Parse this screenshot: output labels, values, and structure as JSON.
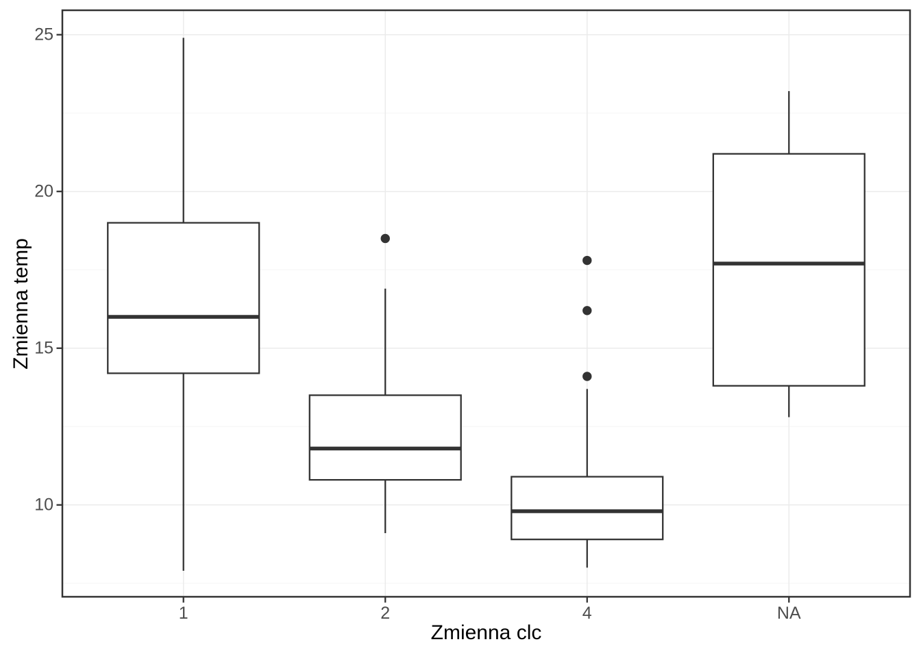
{
  "colors": {
    "box_line": "#333333",
    "outlier_fill": "#333333",
    "panel_border": "#333333",
    "grid_major": "#ebebeb",
    "grid_minor": "#f5f5f5",
    "tick_mark": "#333333",
    "tick_text": "#4d4d4d",
    "axis_title_text": "#000000",
    "background": "#ffffff"
  },
  "chart_data": {
    "type": "boxplot",
    "title": "",
    "xlabel": "Zmienna clc",
    "ylabel": "Zmienna temp",
    "categories": [
      "1",
      "2",
      "4",
      "NA"
    ],
    "y_ticks": [
      25,
      20,
      15,
      10
    ],
    "y_minor_gridlines": [
      22.5,
      17.5,
      12.5,
      7.5
    ],
    "ylim": [
      7.07,
      25.78
    ],
    "grid": "major+minor",
    "legend_position": "none",
    "series": [
      {
        "category": "1",
        "whisker_low": 7.9,
        "q1": 14.2,
        "median": 16.0,
        "q3": 19.0,
        "whisker_high": 24.9,
        "outliers": []
      },
      {
        "category": "2",
        "whisker_low": 9.1,
        "q1": 10.8,
        "median": 11.8,
        "q3": 13.5,
        "whisker_high": 16.9,
        "outliers": [
          18.5
        ]
      },
      {
        "category": "4",
        "whisker_low": 8.0,
        "q1": 8.9,
        "median": 9.8,
        "q3": 10.9,
        "whisker_high": 13.7,
        "outliers": [
          14.1,
          16.2,
          17.8
        ]
      },
      {
        "category": "NA",
        "whisker_low": 12.8,
        "q1": 13.8,
        "median": 17.7,
        "q3": 21.2,
        "whisker_high": 23.2,
        "outliers": []
      }
    ]
  }
}
